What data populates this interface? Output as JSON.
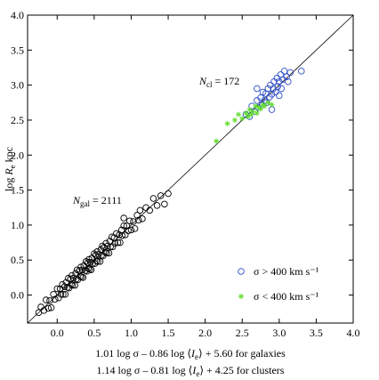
{
  "chart_data": {
    "type": "scatter",
    "ylabel": [
      "log",
      "R",
      "e",
      " kpc"
    ],
    "xlabel": [
      [
        "1.01 log σ – 0.86 log ⟨",
        "I",
        "e",
        "⟩ + 5.60  for galaxies"
      ],
      [
        "1.14 log σ – 0.81 log ⟨",
        "I",
        "e",
        "⟩ + 4.25    for clusters"
      ]
    ],
    "xlim": [
      -0.4,
      4.0
    ],
    "ylim": [
      -0.4,
      4.0
    ],
    "xticks": [
      {
        "value": 0,
        "label": "0.0"
      },
      0.5,
      {
        "value": 1,
        "label": "1.0"
      },
      1.5,
      {
        "value": 2,
        "label": "2.0"
      },
      2.5,
      {
        "value": 3,
        "label": "3.0"
      },
      3.5,
      {
        "value": 4,
        "label": "4.0"
      }
    ],
    "yticks": [
      {
        "value": 0,
        "label": "0.0"
      },
      0.5,
      {
        "value": 1,
        "label": "1.0"
      },
      1.5,
      {
        "value": 2,
        "label": "2.0"
      },
      2.5,
      {
        "value": 3,
        "label": "3.0"
      },
      3.5,
      {
        "value": 4,
        "label": "4.0"
      }
    ],
    "annotations": [
      {
        "symbol": "N",
        "subscript": "gal",
        "text": " = 2111"
      },
      {
        "symbol": "N",
        "subscript": "cl",
        "text": " = 172"
      }
    ],
    "series": [
      {
        "color": "#000000",
        "marker": "circle",
        "x": [
          -0.22,
          -0.18,
          -0.15,
          -0.12,
          -0.1,
          -0.08,
          -0.05,
          -0.03,
          0.0,
          0.02,
          0.04,
          0.05,
          0.07,
          0.08,
          0.1,
          0.11,
          0.12,
          0.14,
          0.15,
          0.16,
          0.18,
          0.19,
          0.2,
          0.21,
          0.22,
          0.24,
          0.25,
          0.26,
          0.27,
          0.28,
          0.3,
          0.31,
          0.32,
          0.33,
          0.34,
          0.35,
          0.36,
          0.38,
          0.39,
          0.4,
          0.41,
          0.42,
          0.43,
          0.44,
          0.45,
          0.46,
          0.47,
          0.48,
          0.5,
          0.51,
          0.52,
          0.53,
          0.54,
          0.55,
          0.56,
          0.58,
          0.59,
          0.6,
          0.61,
          0.62,
          0.63,
          0.65,
          0.66,
          0.67,
          0.68,
          0.7,
          0.71,
          0.72,
          0.74,
          0.75,
          0.77,
          0.78,
          0.8,
          0.82,
          0.84,
          0.85,
          0.87,
          0.88,
          0.9,
          0.92,
          0.94,
          0.96,
          0.98,
          1.0,
          1.03,
          1.05,
          1.08,
          1.1,
          1.12,
          1.15,
          1.2,
          1.25,
          1.3,
          1.35,
          1.4,
          -0.25,
          1.5,
          0.9,
          1.45
        ],
        "values": [
          -0.17,
          -0.22,
          -0.07,
          -0.19,
          -0.08,
          -0.18,
          0.01,
          -0.06,
          0.09,
          -0.04,
          0.09,
          0.01,
          0.15,
          0.01,
          0.12,
          0.01,
          0.18,
          0.11,
          0.24,
          0.1,
          0.23,
          0.15,
          0.28,
          0.14,
          0.24,
          0.14,
          0.31,
          0.23,
          0.36,
          0.22,
          0.35,
          0.27,
          0.4,
          0.26,
          0.36,
          0.25,
          0.42,
          0.35,
          0.48,
          0.34,
          0.46,
          0.38,
          0.51,
          0.37,
          0.47,
          0.36,
          0.53,
          0.45,
          0.59,
          0.45,
          0.57,
          0.49,
          0.62,
          0.48,
          0.58,
          0.48,
          0.65,
          0.57,
          0.7,
          0.56,
          0.68,
          0.61,
          0.74,
          0.6,
          0.7,
          0.6,
          0.77,
          0.69,
          0.83,
          0.69,
          0.82,
          0.74,
          0.88,
          0.75,
          0.86,
          0.75,
          0.93,
          0.85,
          0.99,
          0.86,
          0.99,
          0.92,
          1.06,
          0.93,
          1.05,
          0.95,
          1.14,
          1.07,
          1.21,
          1.09,
          1.25,
          1.21,
          1.38,
          1.28,
          1.42,
          -0.25,
          1.45,
          1.1,
          1.3
        ]
      },
      {
        "name": "σ > 400 km s⁻¹",
        "color": "#2f4fc8",
        "marker": "circle",
        "x": [
          2.55,
          2.6,
          2.63,
          2.67,
          2.7,
          2.72,
          2.75,
          2.77,
          2.78,
          2.8,
          2.82,
          2.83,
          2.85,
          2.87,
          2.88,
          2.9,
          2.92,
          2.93,
          2.95,
          2.97,
          2.98,
          3.0,
          3.02,
          3.03,
          3.05,
          3.07,
          3.1,
          3.12,
          3.15,
          3.3,
          2.9,
          3.0,
          2.7
        ],
        "values": [
          2.58,
          2.55,
          2.7,
          2.62,
          2.78,
          2.68,
          2.82,
          2.72,
          2.9,
          2.78,
          2.88,
          2.75,
          2.95,
          2.83,
          3.0,
          2.87,
          2.95,
          3.05,
          2.9,
          3.1,
          2.98,
          3.05,
          3.15,
          2.95,
          3.08,
          3.2,
          3.12,
          3.05,
          3.18,
          3.2,
          2.65,
          2.85,
          2.95
        ]
      },
      {
        "name": "σ < 400 km s⁻¹",
        "color": "#66dd33",
        "marker": "star",
        "x": [
          2.15,
          2.3,
          2.4,
          2.45,
          2.5,
          2.55,
          2.58,
          2.6,
          2.62,
          2.65,
          2.68,
          2.7,
          2.72,
          2.75,
          2.78,
          2.8,
          2.85,
          2.9
        ],
        "values": [
          2.2,
          2.45,
          2.5,
          2.58,
          2.52,
          2.6,
          2.55,
          2.65,
          2.58,
          2.62,
          2.7,
          2.6,
          2.68,
          2.66,
          2.72,
          2.7,
          2.75,
          2.72
        ]
      }
    ]
  }
}
